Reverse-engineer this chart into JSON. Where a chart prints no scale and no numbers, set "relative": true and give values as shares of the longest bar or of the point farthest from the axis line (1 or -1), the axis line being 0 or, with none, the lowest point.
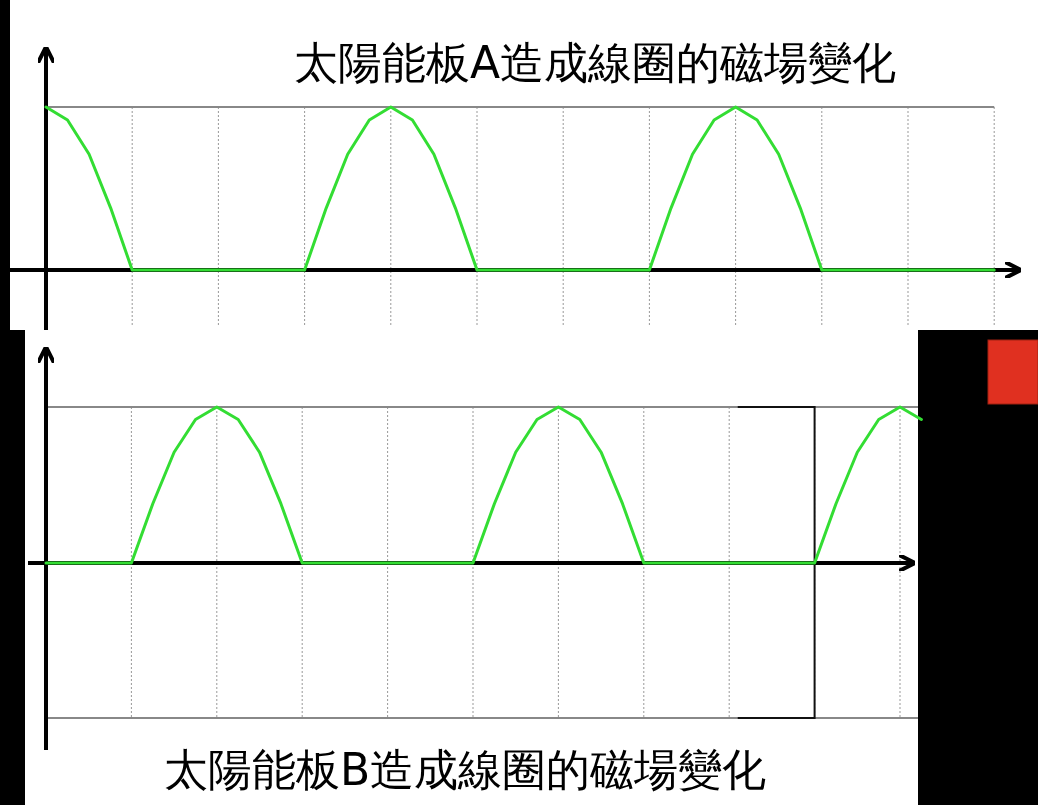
{
  "chart_data": [
    {
      "type": "line",
      "title": "太陽能板A造成線圈的磁場變化",
      "relative": true,
      "grid": "x",
      "categories": [
        null,
        null,
        null,
        null,
        null,
        null,
        null,
        null,
        null,
        null,
        null,
        null,
        null,
        null,
        null,
        null,
        null,
        null,
        null,
        null,
        null,
        null,
        null,
        null,
        null,
        null,
        null,
        null,
        null,
        null,
        null,
        null,
        null,
        null,
        null,
        null,
        null,
        null,
        null,
        null,
        null,
        null,
        null,
        null,
        null
      ],
      "series": [
        {
          "color": "#33dd33",
          "values": [
            1,
            0.92,
            0.71,
            0.38,
            0,
            0,
            0,
            0,
            0,
            0,
            0,
            0,
            0,
            0.38,
            0.71,
            0.92,
            1,
            0.92,
            0.71,
            0.38,
            0,
            0,
            0,
            0,
            0,
            0,
            0,
            0,
            0,
            0.38,
            0.71,
            0.92,
            1,
            0.92,
            0.71,
            0.38,
            0,
            0,
            0,
            0,
            0,
            0,
            0,
            0,
            0
          ]
        }
      ]
    },
    {
      "type": "line",
      "title": "太陽能板B造成線圈的磁場變化",
      "relative": true,
      "grid": "x",
      "categories": [
        null,
        null,
        null,
        null,
        null,
        null,
        null,
        null,
        null,
        null,
        null,
        null,
        null,
        null,
        null,
        null,
        null,
        null,
        null,
        null,
        null,
        null,
        null,
        null,
        null,
        null,
        null,
        null,
        null,
        null,
        null,
        null,
        null,
        null,
        null,
        null,
        null,
        null,
        null,
        null,
        null,
        null
      ],
      "series": [
        {
          "color": "#33dd33",
          "values": [
            0,
            0,
            0,
            0,
            0,
            0.38,
            0.71,
            0.92,
            1,
            0.92,
            0.71,
            0.38,
            0,
            0,
            0,
            0,
            0,
            0,
            0,
            0,
            0,
            0.38,
            0.71,
            0.92,
            1,
            0.92,
            0.71,
            0.38,
            0,
            0,
            0,
            0,
            0,
            0,
            0,
            0,
            0,
            0.38,
            0.71,
            0.92,
            1,
            0.92
          ]
        }
      ]
    }
  ]
}
